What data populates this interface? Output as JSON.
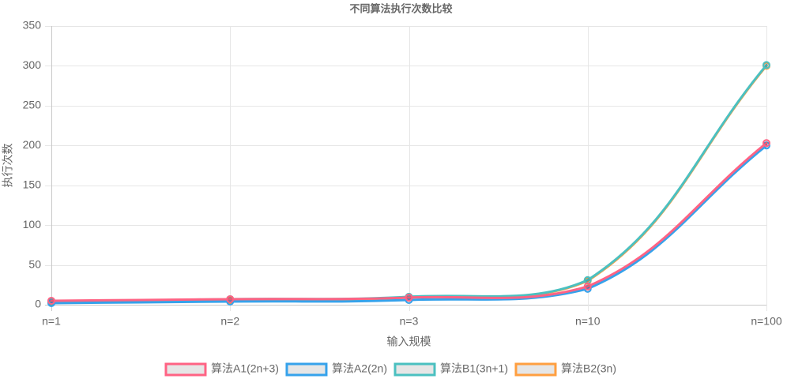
{
  "chart_data": {
    "type": "line",
    "title": "不同算法执行次数比较",
    "xlabel": "输入规模",
    "ylabel": "执行次数",
    "categories": [
      "n=1",
      "n=2",
      "n=3",
      "n=10",
      "n=100"
    ],
    "ylim": [
      0,
      350
    ],
    "yticks": [
      0,
      50,
      100,
      150,
      200,
      250,
      300,
      350
    ],
    "grid": true,
    "legend_position": "bottom",
    "series": [
      {
        "name": "算法A1(2n+3)",
        "color": "#ff6384",
        "values": [
          5,
          7,
          9,
          23,
          203
        ]
      },
      {
        "name": "算法A2(2n)",
        "color": "#36a2eb",
        "values": [
          2,
          4,
          6,
          20,
          200
        ]
      },
      {
        "name": "算法B1(3n+1)",
        "color": "#4bc0c0",
        "values": [
          4,
          7,
          10,
          31,
          301
        ]
      },
      {
        "name": "算法B2(3n)",
        "color": "#ff9f40",
        "values": [
          3,
          6,
          9,
          30,
          300
        ]
      }
    ]
  }
}
